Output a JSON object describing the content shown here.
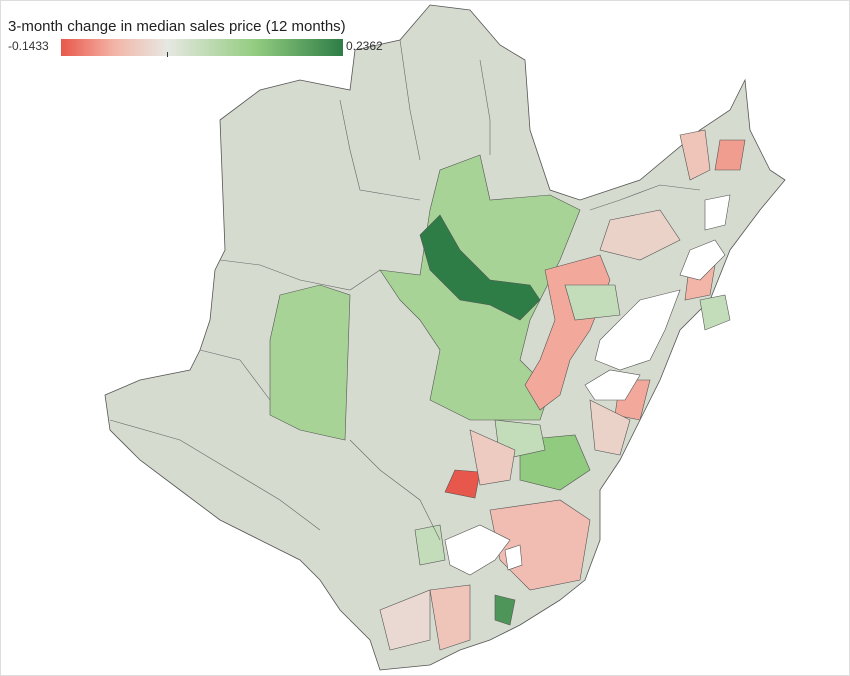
{
  "legend": {
    "title": "3-month change in median sales price (12 months)",
    "min": -0.1433,
    "max": 0.2362,
    "colors": [
      "#e8574b",
      "#f3b4a7",
      "#e6e8e2",
      "#93cc80",
      "#2e7d46"
    ],
    "null_color": "#d5dbcf"
  },
  "regions": [
    {
      "value": 0.09
    },
    {
      "value": 0.09
    },
    {
      "value": 0.2362
    },
    {
      "value": -0.08
    },
    {
      "value": -0.1433
    },
    {
      "value": 0.12
    },
    {
      "value": 0.05
    },
    {
      "value": -0.06
    },
    {
      "value": -0.05
    },
    {
      "value": 0.2
    },
    {
      "value": 0.05
    },
    {
      "value": -0.05
    },
    {
      "value": -0.09
    },
    {
      "value": -0.03
    },
    {
      "value": -0.07
    },
    {
      "value": 0.05
    },
    {
      "value": -0.08
    },
    {
      "value": -0.03
    },
    {
      "value": 0.05
    },
    {
      "value": -0.04
    },
    {
      "value": -0.02
    }
  ]
}
